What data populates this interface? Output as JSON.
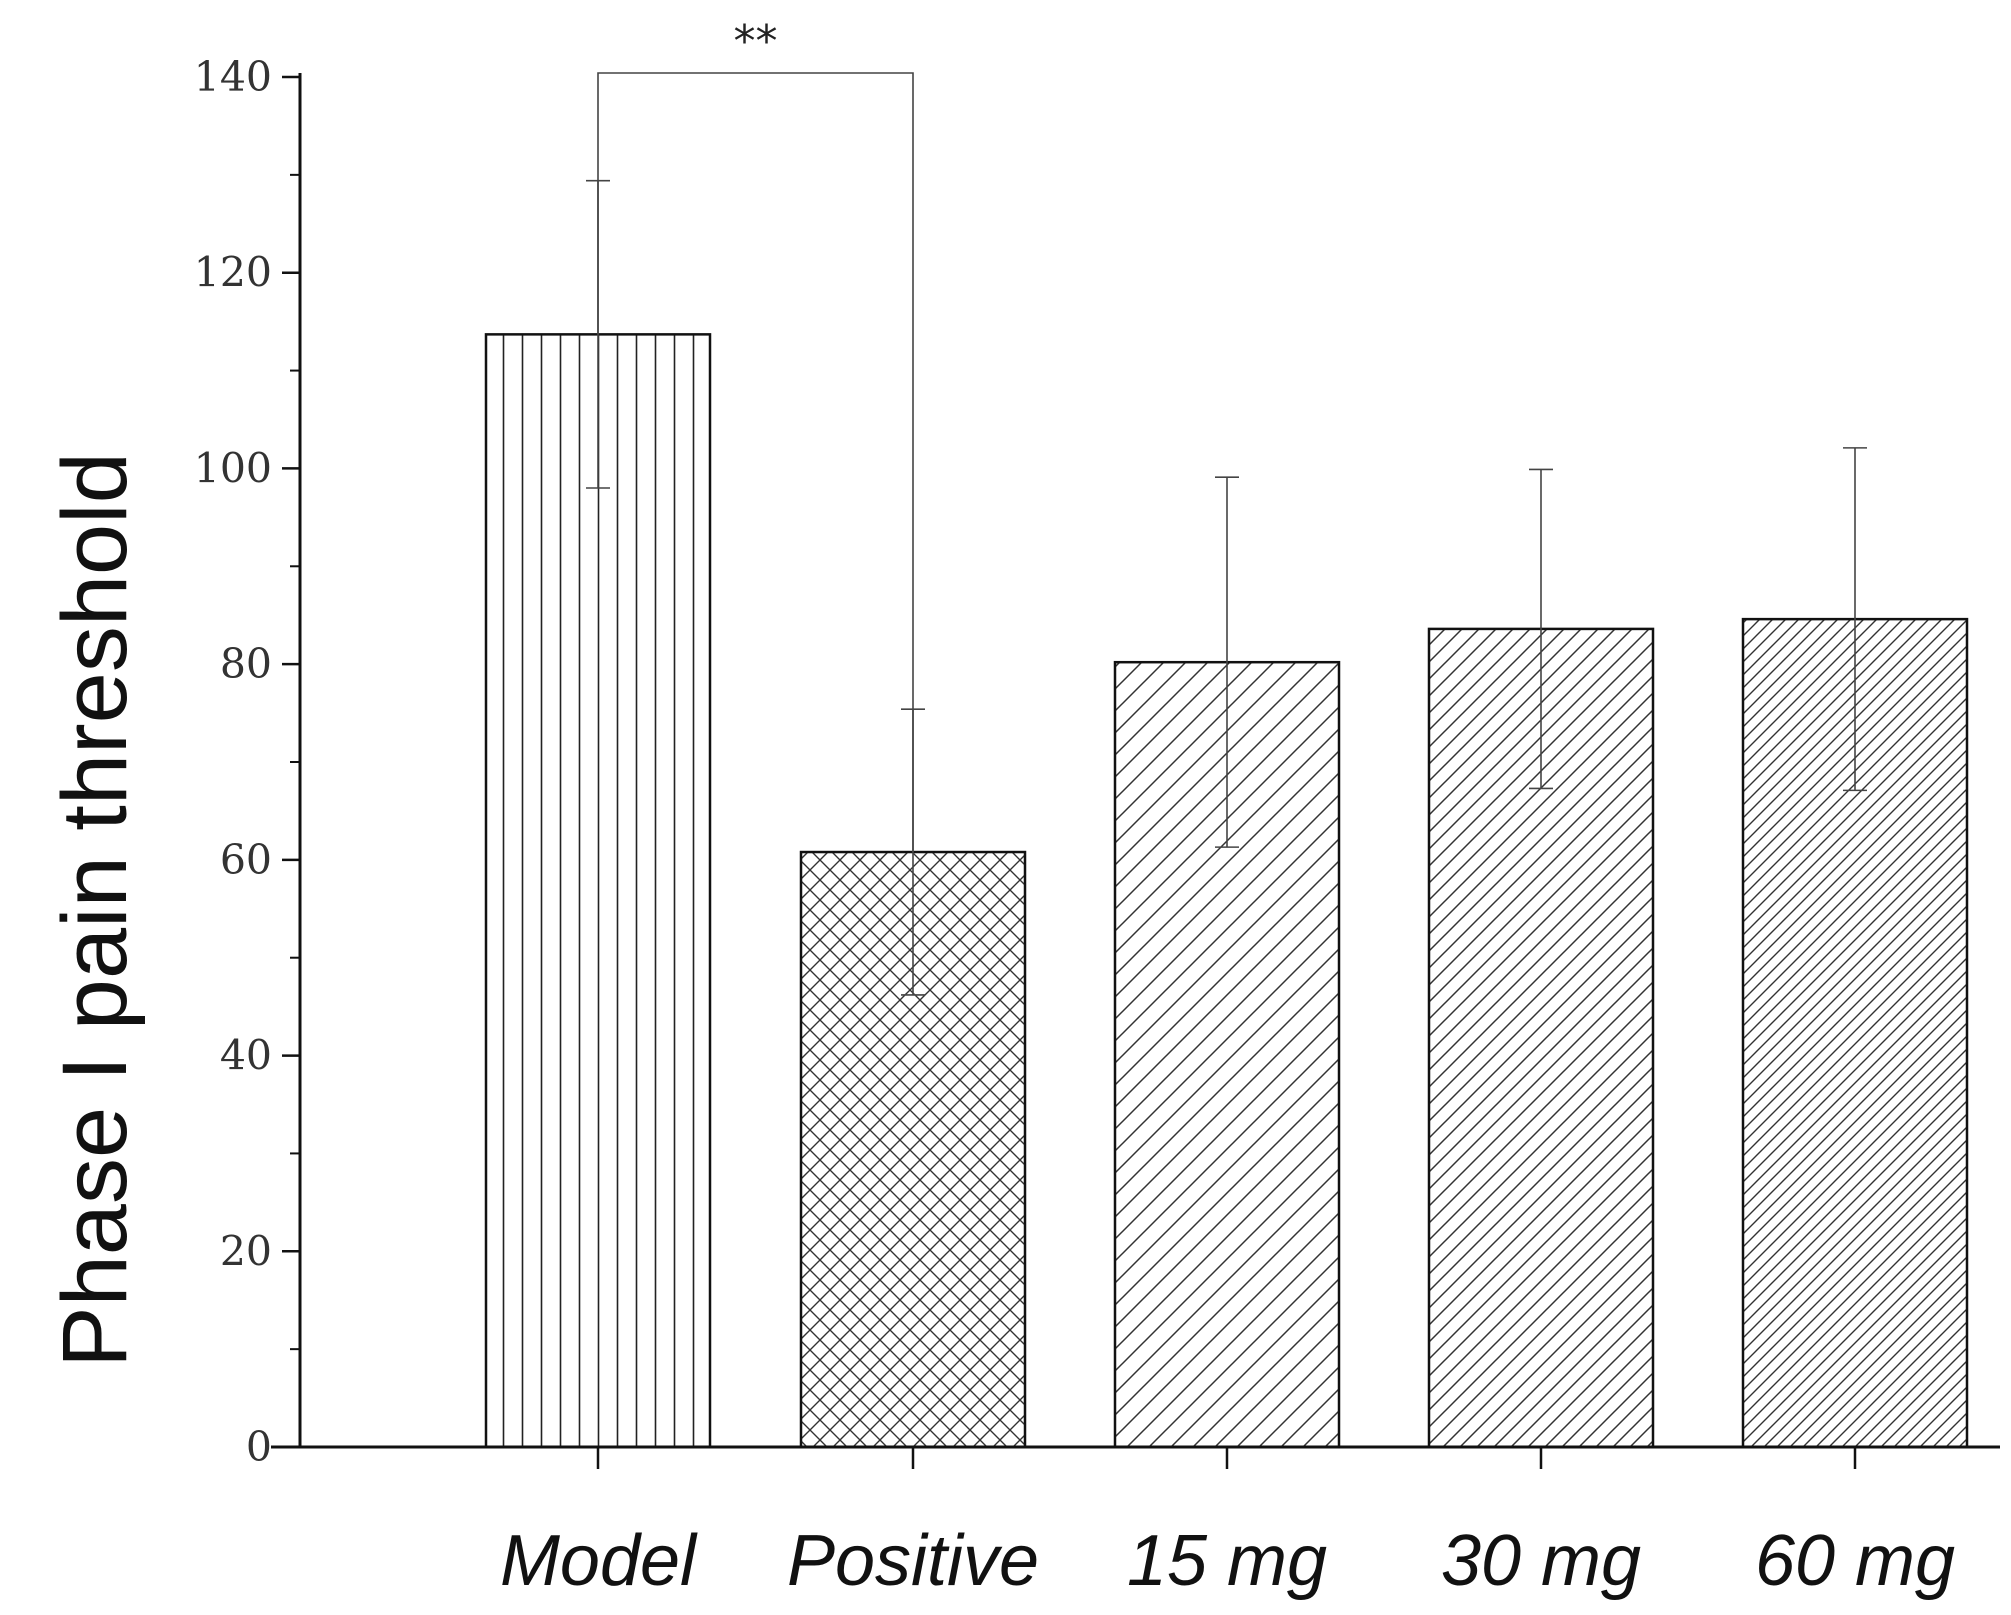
{
  "chart_data": {
    "type": "bar",
    "title": "",
    "xlabel": "",
    "ylabel": "Phase I pain threshold",
    "ylim": [
      0,
      140
    ],
    "yticks": [
      0,
      20,
      40,
      60,
      80,
      100,
      120,
      140
    ],
    "ytick_labels": [
      "0",
      "20",
      "40",
      "60",
      "80",
      "100",
      "120",
      "140"
    ],
    "grid": false,
    "categories": [
      "Model",
      "Positive",
      "15 mg",
      "30 mg",
      "60 mg"
    ],
    "values": [
      113.7,
      60.8,
      80.2,
      83.6,
      84.6
    ],
    "errors": [
      15.7,
      14.6,
      18.9,
      16.3,
      17.5
    ],
    "patterns": [
      "vertical",
      "crosshatch",
      "diagonal-wide",
      "diagonal-medium",
      "diagonal-dense"
    ],
    "annotations": [
      {
        "type": "significance",
        "from": "Model",
        "to": "Positive",
        "label": "**"
      }
    ]
  }
}
